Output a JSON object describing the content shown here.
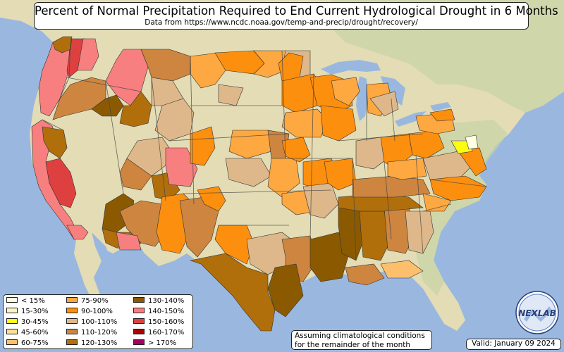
{
  "title": "Percent of Normal Precipitation Required to End Current Hydrological Drought in 6 Months",
  "subtitle": "Data from https://www.ncdc.noaa.gov/temp-and-precip/drought/recovery/",
  "note_line1": "Assuming climatological conditions",
  "note_line2": "for the remainder of the month",
  "valid": "Valid: January 09 2024",
  "logo_text": "NEXLAB",
  "legend": [
    {
      "label": "< 15%",
      "color": "#fefee0"
    },
    {
      "label": "15-30%",
      "color": "#fdf3c6"
    },
    {
      "label": "30-45%",
      "color": "#fdfd12"
    },
    {
      "label": "45-60%",
      "color": "#fde08d"
    },
    {
      "label": "60-75%",
      "color": "#fdbf6c"
    },
    {
      "label": "75-90%",
      "color": "#fda840"
    },
    {
      "label": "90-100%",
      "color": "#fd8f0e"
    },
    {
      "label": "100-110%",
      "color": "#deb88a"
    },
    {
      "label": "110-120%",
      "color": "#cd853f"
    },
    {
      "label": "120-130%",
      "color": "#b06f0b"
    },
    {
      "label": "130-140%",
      "color": "#8b5a00"
    },
    {
      "label": "140-150%",
      "color": "#f77f7f"
    },
    {
      "label": "150-160%",
      "color": "#de4040"
    },
    {
      "label": "160-170%",
      "color": "#b00000"
    },
    {
      "label": "> 170%",
      "color": "#a00060"
    }
  ],
  "colors": {
    "ocean": "#9ab8df",
    "land": "#e3dcb4",
    "land_green": "#c6d3a4",
    "borders": "#333333"
  }
}
